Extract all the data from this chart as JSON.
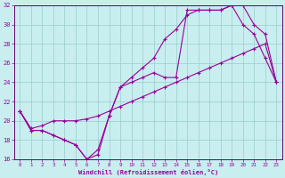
{
  "xlabel": "Windchill (Refroidissement éolien,°C)",
  "bg_color": "#c8eef0",
  "line_color": "#990099",
  "grid_color": "#99cccc",
  "spine_color": "#660066",
  "xlim": [
    -0.5,
    23.5
  ],
  "ylim": [
    16,
    32
  ],
  "xticks": [
    0,
    1,
    2,
    3,
    4,
    5,
    6,
    7,
    8,
    9,
    10,
    11,
    12,
    13,
    14,
    15,
    16,
    17,
    18,
    19,
    20,
    21,
    22,
    23
  ],
  "yticks": [
    16,
    18,
    20,
    22,
    24,
    26,
    28,
    30,
    32
  ],
  "line1_x": [
    0,
    1,
    2,
    3,
    4,
    5,
    6,
    7,
    8,
    9,
    10,
    11,
    12,
    13,
    14,
    15,
    16,
    17,
    18,
    19,
    20,
    21,
    22,
    23
  ],
  "line1_y": [
    21,
    19.0,
    19.0,
    18.5,
    18.0,
    17.5,
    16.0,
    16.5,
    20.5,
    23.5,
    24.5,
    25.5,
    26.5,
    28.5,
    29.5,
    31.0,
    31.5,
    31.5,
    31.5,
    32.0,
    32.0,
    30.0,
    29.0,
    24.0
  ],
  "line2_x": [
    0,
    1,
    2,
    3,
    4,
    5,
    6,
    7,
    8,
    9,
    10,
    11,
    12,
    13,
    14,
    15,
    16,
    17,
    18,
    19,
    20,
    21,
    22,
    23
  ],
  "line2_y": [
    21,
    19.2,
    19.5,
    20.0,
    20.0,
    20.0,
    20.2,
    20.5,
    21.0,
    21.5,
    22.0,
    22.5,
    23.0,
    23.5,
    24.0,
    24.5,
    25.0,
    25.5,
    26.0,
    26.5,
    27.0,
    27.5,
    28.0,
    24.0
  ],
  "line3_x": [
    0,
    1,
    2,
    3,
    4,
    5,
    6,
    7,
    8,
    9,
    10,
    11,
    12,
    13,
    14,
    15,
    16,
    17,
    18,
    19,
    20,
    21,
    22,
    23
  ],
  "line3_y": [
    21,
    19.0,
    19.0,
    18.5,
    18.0,
    17.5,
    16.0,
    17.0,
    20.5,
    23.5,
    24.0,
    24.5,
    25.0,
    24.5,
    24.5,
    31.5,
    31.5,
    31.5,
    31.5,
    32.0,
    30.0,
    29.0,
    26.5,
    24.0
  ],
  "marker": "+"
}
